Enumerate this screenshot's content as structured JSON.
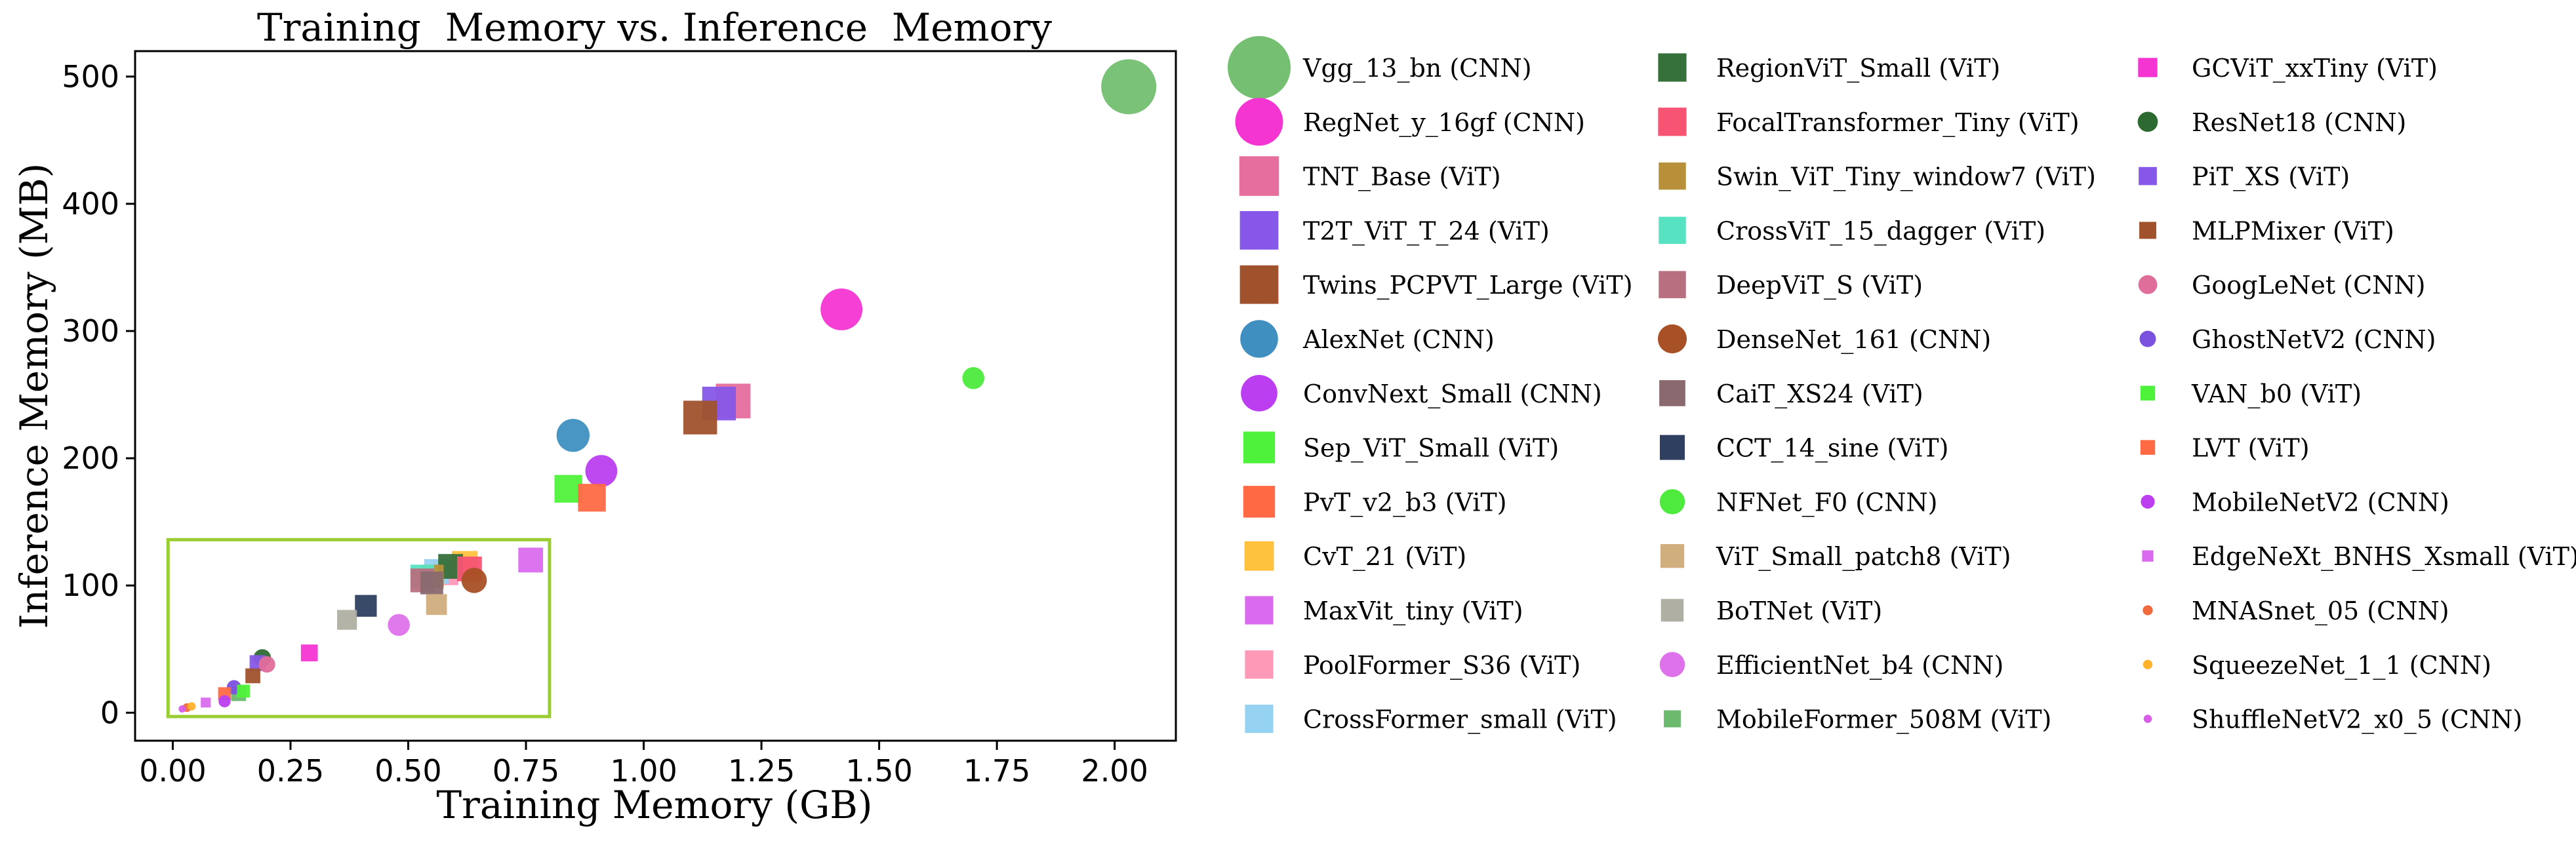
{
  "chart_data": {
    "type": "scatter",
    "title": "Training  Memory vs. Inference  Memory",
    "xlabel": "Training Memory (GB)",
    "ylabel": "Inference Memory (MB)",
    "xlim": [
      -0.08,
      2.13
    ],
    "ylim": [
      -22,
      520
    ],
    "xticks": [
      "0.00",
      "0.25",
      "0.50",
      "0.75",
      "1.00",
      "1.25",
      "1.50",
      "1.75",
      "2.00"
    ],
    "xtick_values": [
      0,
      0.25,
      0.5,
      0.75,
      1.0,
      1.25,
      1.5,
      1.75,
      2.0
    ],
    "yticks": [
      "0",
      "100",
      "200",
      "300",
      "400",
      "500"
    ],
    "ytick_values": [
      0,
      100,
      200,
      300,
      400,
      500
    ],
    "grid": false,
    "legend_position": "right, outside plot, 3 columns",
    "highlight_box": {
      "x": [
        -0.01,
        0.8
      ],
      "y": [
        -3,
        136
      ],
      "color": "#9ACD32"
    },
    "series": [
      {
        "name": "Vgg_13_bn (CNN)",
        "x": 2.03,
        "y": 492,
        "marker": "circle",
        "color": "#74BF72",
        "size": 1.0
      },
      {
        "name": "RegNet_y_16gf (CNN)",
        "x": 1.42,
        "y": 317,
        "marker": "circle",
        "color": "#F535D2",
        "size": 0.76
      },
      {
        "name": "TNT_Base (ViT)",
        "x": 1.19,
        "y": 245,
        "marker": "square",
        "color": "#E66E9E",
        "size": 0.7
      },
      {
        "name": "T2T_ViT_T_24 (ViT)",
        "x": 1.16,
        "y": 243,
        "marker": "square",
        "color": "#8657E8",
        "size": 0.68
      },
      {
        "name": "Twins_PCPVT_Large (ViT)",
        "x": 1.12,
        "y": 232,
        "marker": "square",
        "color": "#A0522D",
        "size": 0.68
      },
      {
        "name": "AlexNet (CNN)",
        "x": 0.85,
        "y": 218,
        "marker": "circle",
        "color": "#3F8FC0",
        "size": 0.6
      },
      {
        "name": "ConvNext_Small (CNN)",
        "x": 0.91,
        "y": 190,
        "marker": "circle",
        "color": "#BB3FF0",
        "size": 0.58
      },
      {
        "name": "Sep_ViT_Small (ViT)",
        "x": 0.84,
        "y": 176,
        "marker": "square",
        "color": "#4FF23A",
        "size": 0.56
      },
      {
        "name": "PvT_v2_b3 (ViT)",
        "x": 0.89,
        "y": 169,
        "marker": "square",
        "color": "#FF6A45",
        "size": 0.56
      },
      {
        "name": "CvT_21 (ViT)",
        "x": 0.62,
        "y": 117,
        "marker": "square",
        "color": "#FFC23F",
        "size": 0.52
      },
      {
        "name": "MaxVit_tiny (ViT)",
        "x": 0.76,
        "y": 120,
        "marker": "square",
        "color": "#DA6BEE",
        "size": 0.5
      },
      {
        "name": "PoolFormer_S36 (ViT)",
        "x": 0.58,
        "y": 110,
        "marker": "square",
        "color": "#FF99B8",
        "size": 0.5
      },
      {
        "name": "CrossFormer_small (ViT)",
        "x": 0.56,
        "y": 111,
        "marker": "square",
        "color": "#96D3F2",
        "size": 0.5
      },
      {
        "name": "RegionViT_Small (ViT)",
        "x": 0.59,
        "y": 115,
        "marker": "square",
        "color": "#36703A",
        "size": 0.5
      },
      {
        "name": "FocalTransformer_Tiny (ViT)",
        "x": 0.63,
        "y": 113,
        "marker": "square",
        "color": "#F75473",
        "size": 0.5
      },
      {
        "name": "Swin_ViT_Tiny_window7 (ViT)",
        "x": 0.55,
        "y": 107,
        "marker": "square",
        "color": "#B8903A",
        "size": 0.48
      },
      {
        "name": "CrossViT_15_dagger (ViT)",
        "x": 0.53,
        "y": 107,
        "marker": "square",
        "color": "#57E3C2",
        "size": 0.48
      },
      {
        "name": "DeepViT_S (ViT)",
        "x": 0.53,
        "y": 104,
        "marker": "square",
        "color": "#B86F7F",
        "size": 0.48
      },
      {
        "name": "DenseNet_161 (CNN)",
        "x": 0.64,
        "y": 104,
        "marker": "circle",
        "color": "#A85026",
        "size": 0.46
      },
      {
        "name": "CaiT_XS24 (ViT)",
        "x": 0.55,
        "y": 102,
        "marker": "square",
        "color": "#8A6A6F",
        "size": 0.46
      },
      {
        "name": "CCT_14_sine (ViT)",
        "x": 0.41,
        "y": 84,
        "marker": "square",
        "color": "#2E3F60",
        "size": 0.44
      },
      {
        "name": "NFNet_F0 (CNN)",
        "x": 1.7,
        "y": 263,
        "marker": "circle",
        "color": "#4EEA3E",
        "size": 0.4
      },
      {
        "name": "ViT_Small_patch8 (ViT)",
        "x": 0.56,
        "y": 85,
        "marker": "square",
        "color": "#D0AE7E",
        "size": 0.42
      },
      {
        "name": "BoTNet (ViT)",
        "x": 0.37,
        "y": 73,
        "marker": "square",
        "color": "#B0AFA3",
        "size": 0.4
      },
      {
        "name": "EfficientNet_b4 (CNN)",
        "x": 0.48,
        "y": 69,
        "marker": "circle",
        "color": "#DE72EA",
        "size": 0.4
      },
      {
        "name": "MobileFormer_508M (ViT)",
        "x": 0.14,
        "y": 15,
        "marker": "square",
        "color": "#6CBA6E",
        "size": 0.3
      },
      {
        "name": "GCViT_xxTiny (ViT)",
        "x": 0.29,
        "y": 47,
        "marker": "square",
        "color": "#F535D2",
        "size": 0.34
      },
      {
        "name": "ResNet18 (CNN)",
        "x": 0.19,
        "y": 43,
        "marker": "circle",
        "color": "#2D6A32",
        "size": 0.32
      },
      {
        "name": "PiT_XS (ViT)",
        "x": 0.18,
        "y": 39,
        "marker": "square",
        "color": "#8657E8",
        "size": 0.32
      },
      {
        "name": "MLPMixer (ViT)",
        "x": 0.17,
        "y": 29,
        "marker": "square",
        "color": "#A0522D",
        "size": 0.3
      },
      {
        "name": "GoogLeNet (CNN)",
        "x": 0.2,
        "y": 38,
        "marker": "circle",
        "color": "#E06E9A",
        "size": 0.3
      },
      {
        "name": "GhostNetV2 (CNN)",
        "x": 0.13,
        "y": 20,
        "marker": "circle",
        "color": "#7B51E0",
        "size": 0.26
      },
      {
        "name": "VAN_b0 (ViT)",
        "x": 0.15,
        "y": 17,
        "marker": "square",
        "color": "#4FF23A",
        "size": 0.26
      },
      {
        "name": "LVT (ViT)",
        "x": 0.11,
        "y": 15,
        "marker": "square",
        "color": "#FF6A45",
        "size": 0.26
      },
      {
        "name": "MobileNetV2 (CNN)",
        "x": 0.11,
        "y": 9,
        "marker": "circle",
        "color": "#BB3FF0",
        "size": 0.22
      },
      {
        "name": "EdgeNeXt_BNHS_Xsmall (ViT)",
        "x": 0.07,
        "y": 8,
        "marker": "square",
        "color": "#DA6BEE",
        "size": 0.2
      },
      {
        "name": "MNASnet_05 (CNN)",
        "x": 0.03,
        "y": 4,
        "marker": "circle",
        "color": "#F06A3E",
        "size": 0.16
      },
      {
        "name": "SqueezeNet_1_1 (CNN)",
        "x": 0.04,
        "y": 5,
        "marker": "circle",
        "color": "#FFB22C",
        "size": 0.15
      },
      {
        "name": "ShuffleNetV2_x0_5 (CNN)",
        "x": 0.02,
        "y": 3,
        "marker": "circle",
        "color": "#D85CE8",
        "size": 0.13
      }
    ]
  }
}
